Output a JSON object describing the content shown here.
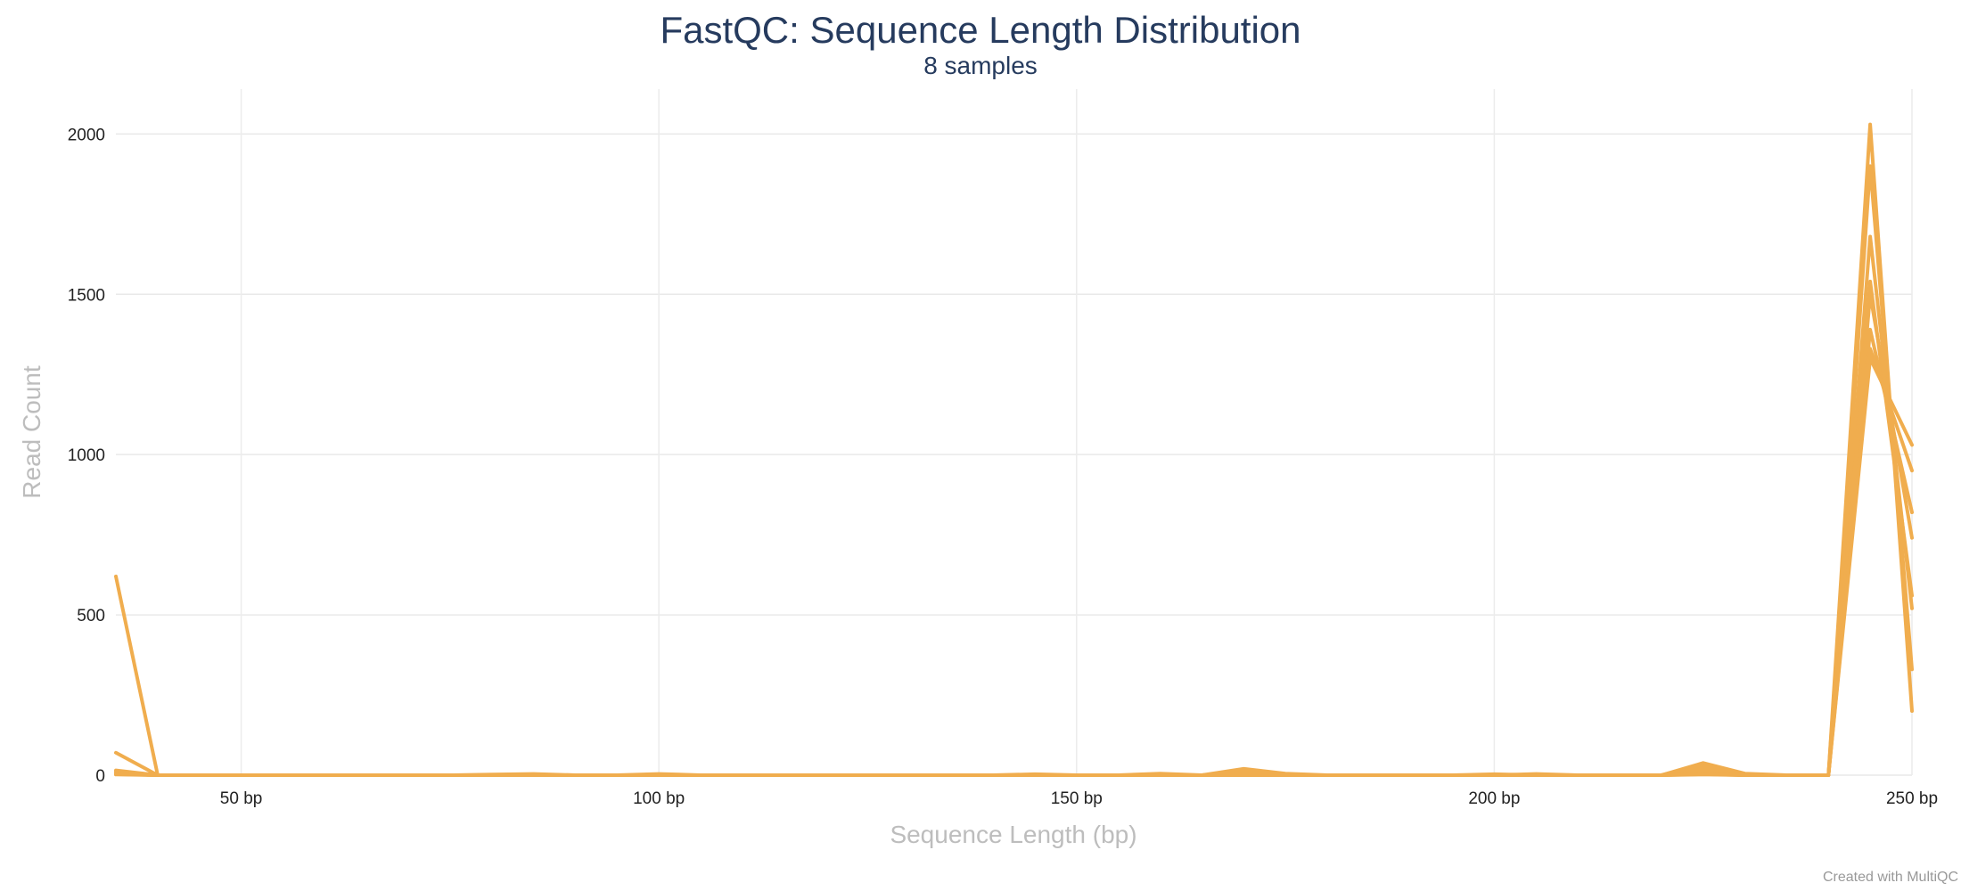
{
  "title": "FastQC: Sequence Length Distribution",
  "subtitle": "8 samples",
  "credit": "Created with MultiQC",
  "line_color": "#f0ad4e",
  "chart_data": {
    "type": "line",
    "title": "FastQC: Sequence Length Distribution",
    "subtitle": "8 samples",
    "xlabel": "Sequence Length (bp)",
    "ylabel": "Read Count",
    "xlim": [
      35,
      250
    ],
    "ylim": [
      0,
      2140
    ],
    "xticks": [
      50,
      100,
      150,
      200,
      250
    ],
    "xtick_labels": [
      "50 bp",
      "100 bp",
      "150 bp",
      "200 bp",
      "250 bp"
    ],
    "yticks": [
      0,
      500,
      1000,
      1500,
      2000
    ],
    "ytick_labels": [
      "0",
      "500",
      "1000",
      "1500",
      "2000"
    ],
    "grid": true,
    "legend": "none",
    "series": [
      {
        "x": [
          35,
          40,
          45,
          50,
          55,
          60,
          65,
          70,
          75,
          80,
          85,
          90,
          95,
          100,
          105,
          110,
          115,
          120,
          125,
          130,
          135,
          140,
          145,
          150,
          155,
          160,
          165,
          170,
          175,
          180,
          185,
          190,
          195,
          200,
          205,
          210,
          215,
          220,
          225,
          230,
          235,
          240,
          245,
          250
        ],
        "y": [
          620,
          0,
          0,
          0,
          0,
          0,
          0,
          0,
          0,
          2,
          4,
          0,
          0,
          4,
          0,
          0,
          0,
          0,
          0,
          0,
          0,
          0,
          3,
          0,
          0,
          5,
          0,
          20,
          5,
          0,
          0,
          0,
          0,
          0,
          0,
          0,
          0,
          0,
          8,
          0,
          0,
          0,
          2030,
          200
        ]
      },
      {
        "x": [
          35,
          40,
          45,
          50,
          55,
          60,
          65,
          70,
          75,
          80,
          85,
          90,
          95,
          100,
          105,
          110,
          115,
          120,
          125,
          130,
          135,
          140,
          145,
          150,
          155,
          160,
          165,
          170,
          175,
          180,
          185,
          190,
          195,
          200,
          205,
          210,
          215,
          220,
          225,
          230,
          235,
          240,
          245,
          250
        ],
        "y": [
          70,
          0,
          0,
          0,
          0,
          0,
          0,
          0,
          0,
          0,
          0,
          0,
          0,
          0,
          0,
          0,
          0,
          0,
          0,
          0,
          0,
          0,
          0,
          0,
          0,
          0,
          0,
          10,
          0,
          0,
          0,
          0,
          0,
          3,
          0,
          0,
          0,
          0,
          38,
          5,
          0,
          0,
          1900,
          330
        ]
      },
      {
        "x": [
          35,
          40,
          45,
          50,
          55,
          60,
          65,
          70,
          75,
          80,
          85,
          90,
          95,
          100,
          105,
          110,
          115,
          120,
          125,
          130,
          135,
          140,
          145,
          150,
          155,
          160,
          165,
          170,
          175,
          180,
          185,
          190,
          195,
          200,
          205,
          210,
          215,
          220,
          225,
          230,
          235,
          240,
          245,
          250
        ],
        "y": [
          15,
          0,
          0,
          0,
          0,
          0,
          0,
          0,
          0,
          0,
          0,
          0,
          0,
          0,
          0,
          0,
          0,
          0,
          0,
          0,
          0,
          0,
          0,
          0,
          0,
          0,
          0,
          5,
          0,
          0,
          0,
          0,
          0,
          0,
          4,
          0,
          0,
          0,
          30,
          0,
          0,
          0,
          1680,
          520
        ]
      },
      {
        "x": [
          35,
          40,
          45,
          50,
          55,
          60,
          65,
          70,
          75,
          80,
          85,
          90,
          95,
          100,
          105,
          110,
          115,
          120,
          125,
          130,
          135,
          140,
          145,
          150,
          155,
          160,
          165,
          170,
          175,
          180,
          185,
          190,
          195,
          200,
          205,
          210,
          215,
          220,
          225,
          230,
          235,
          240,
          245,
          250
        ],
        "y": [
          10,
          0,
          0,
          0,
          0,
          0,
          0,
          0,
          0,
          0,
          0,
          0,
          0,
          0,
          0,
          0,
          0,
          0,
          0,
          0,
          0,
          0,
          0,
          0,
          0,
          0,
          0,
          0,
          0,
          0,
          0,
          0,
          0,
          0,
          0,
          0,
          0,
          0,
          20,
          0,
          0,
          0,
          1540,
          560
        ]
      },
      {
        "x": [
          35,
          40,
          45,
          50,
          55,
          60,
          65,
          70,
          75,
          80,
          85,
          90,
          95,
          100,
          105,
          110,
          115,
          120,
          125,
          130,
          135,
          140,
          145,
          150,
          155,
          160,
          165,
          170,
          175,
          180,
          185,
          190,
          195,
          200,
          205,
          210,
          215,
          220,
          225,
          230,
          235,
          240,
          245,
          250
        ],
        "y": [
          5,
          0,
          0,
          0,
          0,
          0,
          0,
          0,
          0,
          0,
          0,
          0,
          0,
          0,
          0,
          0,
          0,
          0,
          0,
          0,
          0,
          0,
          0,
          0,
          0,
          0,
          0,
          0,
          0,
          0,
          0,
          0,
          0,
          0,
          0,
          0,
          0,
          0,
          10,
          0,
          0,
          0,
          1500,
          740
        ]
      },
      {
        "x": [
          35,
          40,
          45,
          50,
          55,
          60,
          65,
          70,
          75,
          80,
          85,
          90,
          95,
          100,
          105,
          110,
          115,
          120,
          125,
          130,
          135,
          140,
          145,
          150,
          155,
          160,
          165,
          170,
          175,
          180,
          185,
          190,
          195,
          200,
          205,
          210,
          215,
          220,
          225,
          230,
          235,
          240,
          245,
          250
        ],
        "y": [
          5,
          0,
          0,
          0,
          0,
          0,
          0,
          0,
          0,
          0,
          0,
          0,
          0,
          0,
          0,
          0,
          0,
          0,
          0,
          0,
          0,
          0,
          0,
          0,
          0,
          0,
          0,
          0,
          0,
          0,
          0,
          0,
          0,
          0,
          0,
          0,
          0,
          0,
          5,
          0,
          0,
          0,
          1390,
          820
        ]
      },
      {
        "x": [
          35,
          40,
          45,
          50,
          55,
          60,
          65,
          70,
          75,
          80,
          85,
          90,
          95,
          100,
          105,
          110,
          115,
          120,
          125,
          130,
          135,
          140,
          145,
          150,
          155,
          160,
          165,
          170,
          175,
          180,
          185,
          190,
          195,
          200,
          205,
          210,
          215,
          220,
          225,
          230,
          235,
          240,
          245,
          250
        ],
        "y": [
          3,
          0,
          0,
          0,
          0,
          0,
          0,
          0,
          0,
          0,
          0,
          0,
          0,
          0,
          0,
          0,
          0,
          0,
          0,
          0,
          0,
          0,
          0,
          0,
          0,
          0,
          0,
          0,
          0,
          0,
          0,
          0,
          0,
          0,
          0,
          0,
          0,
          0,
          3,
          0,
          0,
          0,
          1330,
          950
        ]
      },
      {
        "x": [
          35,
          40,
          45,
          50,
          55,
          60,
          65,
          70,
          75,
          80,
          85,
          90,
          95,
          100,
          105,
          110,
          115,
          120,
          125,
          130,
          135,
          140,
          145,
          150,
          155,
          160,
          165,
          170,
          175,
          180,
          185,
          190,
          195,
          200,
          205,
          210,
          215,
          220,
          225,
          230,
          235,
          240,
          245,
          250
        ],
        "y": [
          2,
          0,
          0,
          0,
          0,
          0,
          0,
          0,
          0,
          0,
          0,
          0,
          0,
          0,
          0,
          0,
          0,
          0,
          0,
          0,
          0,
          0,
          0,
          0,
          0,
          0,
          0,
          0,
          0,
          0,
          0,
          0,
          0,
          0,
          0,
          0,
          0,
          0,
          2,
          0,
          0,
          0,
          1300,
          1030
        ]
      }
    ]
  }
}
